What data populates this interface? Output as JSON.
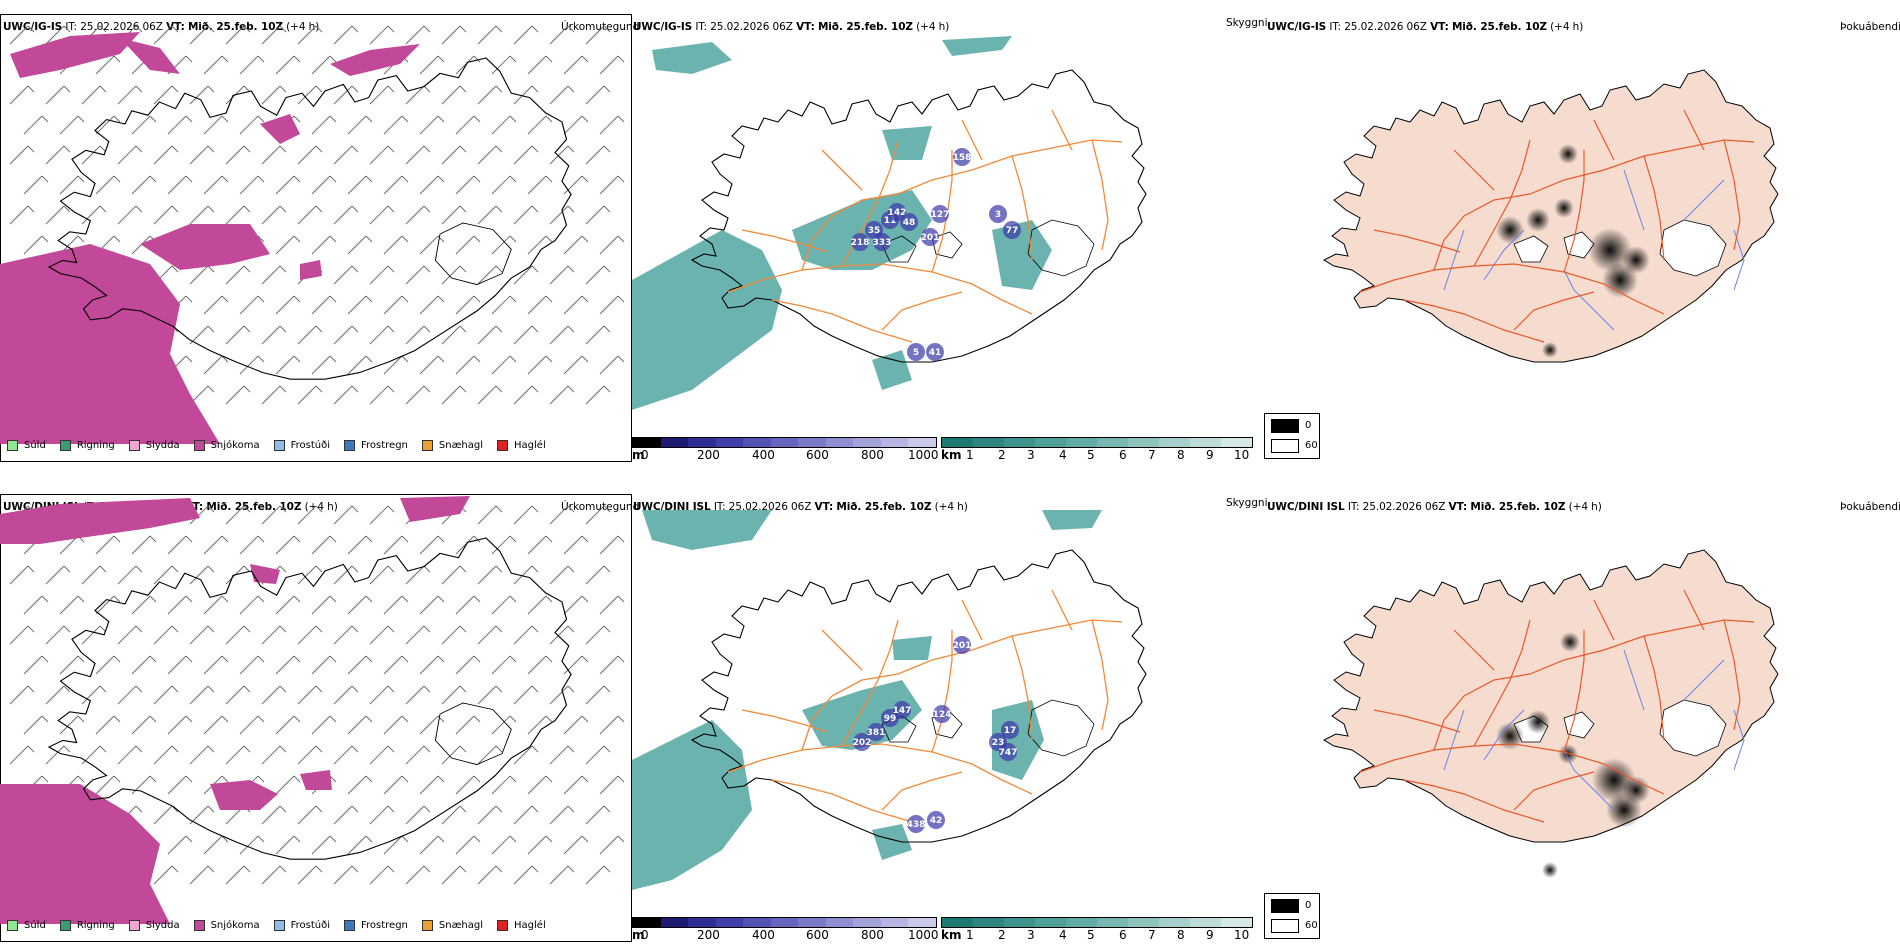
{
  "rows": [
    {
      "model": "UWC/IG-IS",
      "it": "IT: 25.02.2026 06Z",
      "vt_label": "VT:",
      "vt_value": "Mið. 25.feb. 10Z",
      "offset": "(+4 h)"
    },
    {
      "model": "UWC/DINI ISL",
      "it": "IT: 25.02.2026 06Z",
      "vt_label": "VT:",
      "vt_value": "Mið. 25.feb. 10Z",
      "offset": "(+4 h)"
    }
  ],
  "panel_titles": {
    "precip": "Úrkomutegund",
    "cloud": "Skyggni",
    "fog": "Þokuábendi"
  },
  "precip_legend": [
    {
      "label": "Súld",
      "color": "#8fe88f"
    },
    {
      "label": "Rigning",
      "color": "#3a9a70"
    },
    {
      "label": "Slydda",
      "color": "#f0a6d2"
    },
    {
      "label": "Snjókoma",
      "color": "#c2489a"
    },
    {
      "label": "Frostúði",
      "color": "#8fbde8"
    },
    {
      "label": "Frostregn",
      "color": "#3f78c0"
    },
    {
      "label": "Snæhagl",
      "color": "#f0a030"
    },
    {
      "label": "Haglél",
      "color": "#e02020"
    }
  ],
  "cloudbase_bar": {
    "unit": "m",
    "ticks": [
      "0",
      "200",
      "400",
      "600",
      "800",
      "1000"
    ],
    "colors": [
      "#000000",
      "#1d1a73",
      "#2e2d92",
      "#3e3ea6",
      "#5452b3",
      "#6765bd",
      "#7b7ac6",
      "#8f8ed0",
      "#a3a2d9",
      "#b7b6e2",
      "#cbcaeb"
    ]
  },
  "visibility_bar": {
    "unit": "km",
    "ticks": [
      "1",
      "2",
      "3",
      "4",
      "5",
      "6",
      "7",
      "8",
      "9",
      "10"
    ],
    "colors": [
      "#1d7a72",
      "#2d8780",
      "#3d948d",
      "#4e9f98",
      "#62aba4",
      "#78b7b1",
      "#8fc4be",
      "#a6d0cb",
      "#bddcd8",
      "#d5e9e6"
    ]
  },
  "fog_legend": [
    {
      "label": "0",
      "color": "#000000"
    },
    {
      "label": "60",
      "color": "#ffffff"
    }
  ],
  "labels_top": [
    {
      "text": "158"
    },
    {
      "text": "11"
    },
    {
      "text": "142"
    },
    {
      "text": "48"
    },
    {
      "text": "127"
    },
    {
      "text": "35"
    },
    {
      "text": "218"
    },
    {
      "text": "333"
    },
    {
      "text": "201"
    },
    {
      "text": "77"
    },
    {
      "text": "3"
    },
    {
      "text": "41"
    },
    {
      "text": "5"
    }
  ],
  "labels_bottom": [
    {
      "text": "201"
    },
    {
      "text": "99"
    },
    {
      "text": "147"
    },
    {
      "text": "124"
    },
    {
      "text": "381"
    },
    {
      "text": "202"
    },
    {
      "text": "17"
    },
    {
      "text": "23"
    },
    {
      "text": "747"
    },
    {
      "text": "438"
    },
    {
      "text": "42"
    }
  ],
  "colors": {
    "snow": "#c2489a",
    "teal": "#3a9a94",
    "roads": "#f08a3a",
    "fog_bg": "#f5dccf",
    "rivers": "#6a82e8"
  }
}
